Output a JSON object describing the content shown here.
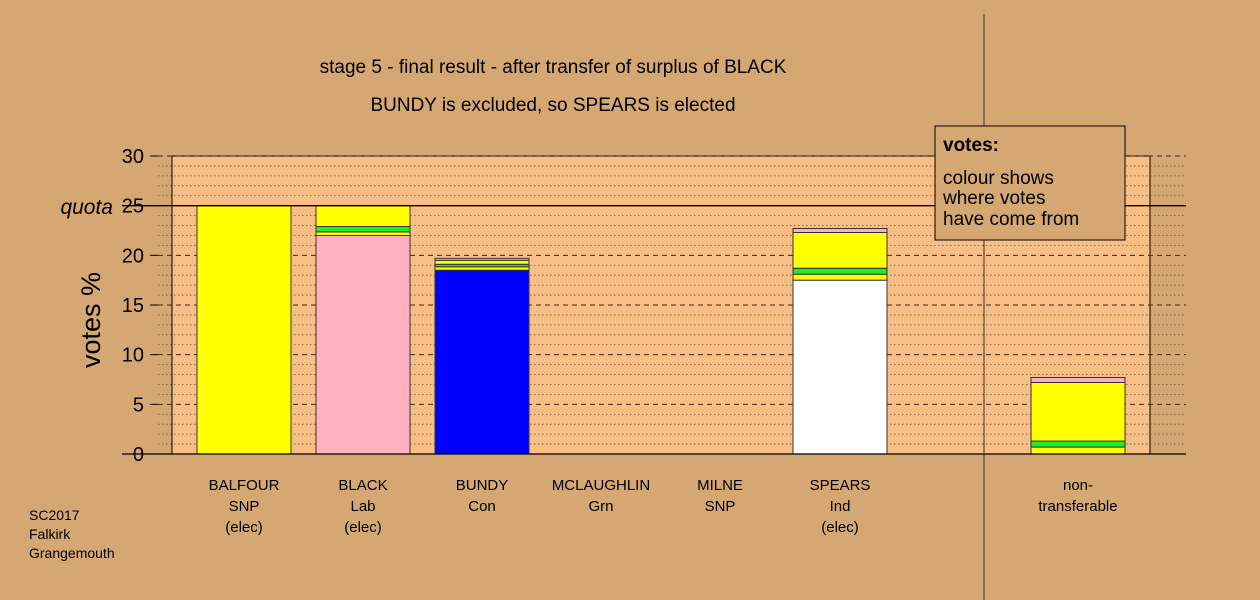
{
  "colors": {
    "background": "#d4a773",
    "plot_area": "#f7bf85",
    "SNP": "#ffff00",
    "Lab": "#ffb0c0",
    "Con": "#0000ff",
    "Grn": "#22ee22",
    "Ind": "#ffffff",
    "other": "#ffb0c0"
  },
  "chart_data": {
    "type": "bar",
    "stacked": true,
    "title": "stage 5 - final result - after transfer of surplus of BLACK",
    "subtitle": "BUNDY is excluded, so SPEARS is elected",
    "ylabel": "votes %",
    "ylim": [
      0,
      30
    ],
    "yticks": [
      "0",
      "5",
      "10",
      "15",
      "20",
      "25",
      "30"
    ],
    "quota": {
      "label": "quota",
      "value": 25
    },
    "categories": [
      {
        "line1": "BALFOUR",
        "line2": "SNP",
        "line3": "(elec)"
      },
      {
        "line1": "BLACK",
        "line2": "Lab",
        "line3": "(elec)"
      },
      {
        "line1": "BUNDY",
        "line2": "Con",
        "line3": ""
      },
      {
        "line1": "MCLAUGHLIN",
        "line2": "Grn",
        "line3": ""
      },
      {
        "line1": "MILNE",
        "line2": "SNP",
        "line3": ""
      },
      {
        "line1": "SPEARS",
        "line2": "Ind",
        "line3": "(elec)"
      },
      {
        "line1": "non-",
        "line2": "transferable",
        "line3": ""
      }
    ],
    "bars": [
      {
        "segments": [
          {
            "party": "SNP",
            "value": 25.0
          }
        ]
      },
      {
        "segments": [
          {
            "party": "Lab",
            "value": 22.0
          },
          {
            "party": "SNP",
            "value": 0.35
          },
          {
            "party": "Grn",
            "value": 0.55
          },
          {
            "party": "SNP",
            "value": 2.1
          }
        ]
      },
      {
        "segments": [
          {
            "party": "Con",
            "value": 18.5
          },
          {
            "party": "SNP",
            "value": 0.35
          },
          {
            "party": "Grn",
            "value": 0.25
          },
          {
            "party": "SNP",
            "value": 0.4
          },
          {
            "party": "other",
            "value": 0.2
          }
        ]
      },
      {
        "segments": []
      },
      {
        "segments": []
      },
      {
        "segments": [
          {
            "party": "Ind",
            "value": 17.5
          },
          {
            "party": "SNP",
            "value": 0.6
          },
          {
            "party": "Grn",
            "value": 0.6
          },
          {
            "party": "SNP",
            "value": 3.6
          },
          {
            "party": "other",
            "value": 0.4
          }
        ]
      },
      {
        "segments": [
          {
            "party": "SNP",
            "value": 0.7
          },
          {
            "party": "Grn",
            "value": 0.6
          },
          {
            "party": "SNP",
            "value": 5.9
          },
          {
            "party": "other",
            "value": 0.5
          }
        ]
      }
    ],
    "legend": {
      "heading": "votes:",
      "lines": [
        "colour shows",
        "where votes",
        "have come from"
      ],
      "placement": "top-right"
    }
  },
  "footer": {
    "lines": [
      "SC2017",
      "Falkirk",
      "Grangemouth"
    ]
  }
}
